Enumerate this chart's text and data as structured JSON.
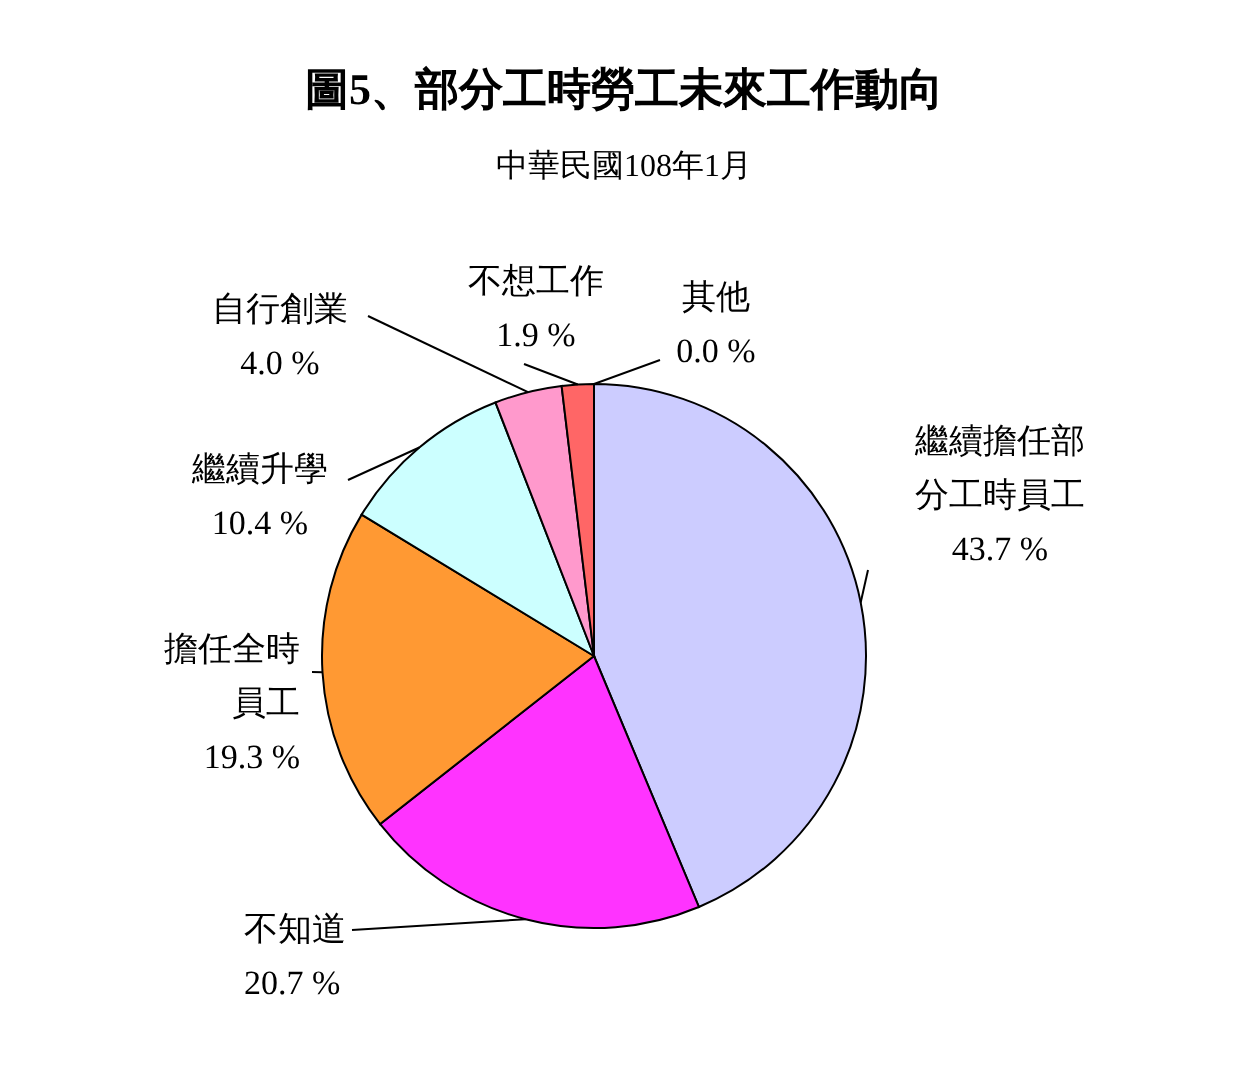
{
  "chart_data": {
    "type": "pie",
    "title": "圖5、部分工時勞工未來工作動向",
    "subtitle": "中華民國108年1月",
    "categories": [
      "繼續擔任部分工時員工",
      "不知道",
      "擔任全時員工",
      "繼續升學",
      "自行創業",
      "不想工作",
      "其他"
    ],
    "values": [
      43.7,
      20.7,
      19.3,
      10.4,
      4.0,
      1.9,
      0.0
    ],
    "value_labels": [
      "43.7 %",
      "20.7 %",
      "19.3 %",
      "10.4 %",
      "4.0 %",
      "1.9 %",
      "0.0 %"
    ],
    "colors": [
      "#ccccff",
      "#ff33ff",
      "#ff9933",
      "#ccffff",
      "#ff99cc",
      "#ff6666",
      "#ffffff"
    ]
  }
}
